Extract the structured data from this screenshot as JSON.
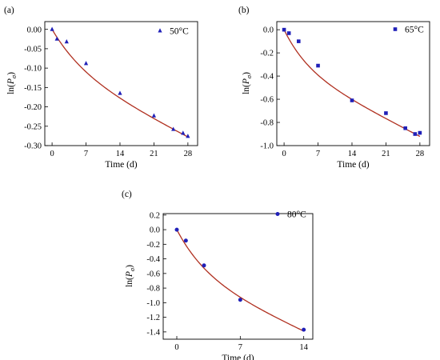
{
  "chart_data": [
    {
      "type": "scatter",
      "panel_label": "(a)",
      "xlabel": "Time (d)",
      "ylabel": {
        "prefix": "ln(",
        "var": "P",
        "sub": "σ",
        "suffix": ")"
      },
      "xlim": [
        -1.5,
        30
      ],
      "ylim": [
        -0.3,
        0.02
      ],
      "xticks": [
        0,
        7,
        14,
        21,
        28
      ],
      "yticks": [
        0.0,
        -0.05,
        -0.1,
        -0.15,
        -0.2,
        -0.25,
        -0.3
      ],
      "ytick_labels": [
        "0.00",
        "-0.05",
        "-0.10",
        "-0.15",
        "-0.20",
        "-0.25",
        "-0.30"
      ],
      "grid": false,
      "legend_position": "top-right",
      "series": [
        {
          "name": "50°C",
          "marker": "triangle",
          "color": "#2020b8",
          "x": [
            0,
            1,
            3,
            7,
            14,
            21,
            25,
            27,
            28
          ],
          "y": [
            0.0,
            -0.025,
            -0.032,
            -0.088,
            -0.165,
            -0.223,
            -0.258,
            -0.268,
            -0.276
          ]
        },
        {
          "name": "fit",
          "type": "line",
          "color": "#b03020",
          "fit": {
            "form": "a*(1-exp(-k*t))+c*t",
            "a": -0.1,
            "k": 0.15,
            "c": -0.0064
          }
        }
      ]
    },
    {
      "type": "scatter",
      "panel_label": "(b)",
      "xlabel": "Time (d)",
      "ylabel": {
        "prefix": "ln(",
        "var": "P",
        "sub": "σ",
        "suffix": ")"
      },
      "xlim": [
        -1.5,
        30
      ],
      "ylim": [
        -1.0,
        0.07
      ],
      "xticks": [
        0,
        7,
        14,
        21,
        28
      ],
      "yticks": [
        0.0,
        -0.2,
        -0.4,
        -0.6,
        -0.8,
        -1.0
      ],
      "ytick_labels": [
        "0.0",
        "-0.2",
        "-0.4",
        "-0.6",
        "-0.8",
        "-1.0"
      ],
      "grid": false,
      "legend_position": "top-right",
      "series": [
        {
          "name": "65°C",
          "marker": "square",
          "color": "#2020b8",
          "x": [
            0,
            1,
            3,
            7,
            14,
            21,
            25,
            27,
            28
          ],
          "y": [
            0.0,
            -0.03,
            -0.1,
            -0.31,
            -0.61,
            -0.72,
            -0.85,
            -0.9,
            -0.89
          ]
        },
        {
          "name": "fit",
          "type": "line",
          "color": "#b03020",
          "fit": {
            "form": "a*(1-exp(-k*t))+c*t",
            "a": -0.32,
            "k": 0.2,
            "c": -0.0215
          }
        }
      ]
    },
    {
      "type": "scatter",
      "panel_label": "(c)",
      "xlabel": "Time (d)",
      "ylabel": {
        "prefix": "ln(",
        "var": "P",
        "sub": "σ",
        "suffix": ")"
      },
      "xlim": [
        -1.5,
        15
      ],
      "ylim": [
        -1.5,
        0.22
      ],
      "xticks": [
        0,
        7,
        14
      ],
      "yticks": [
        0.2,
        0.0,
        -0.2,
        -0.4,
        -0.6,
        -0.8,
        -1.0,
        -1.2,
        -1.4
      ],
      "ytick_labels": [
        "0.2",
        "0.0",
        "-0.2",
        "-0.4",
        "-0.6",
        "-0.8",
        "-1.0",
        "-1.2",
        "-1.4"
      ],
      "grid": false,
      "legend_position": "top-right",
      "series": [
        {
          "name": "80°C",
          "marker": "circle",
          "color": "#2020b8",
          "x": [
            0,
            1,
            3,
            7,
            14
          ],
          "y": [
            0.0,
            -0.15,
            -0.49,
            -0.96,
            -1.37
          ]
        },
        {
          "name": "fit",
          "type": "line",
          "color": "#b03020",
          "fit": {
            "form": "a*(1-exp(-k*t))+c*t",
            "a": -0.6,
            "k": 0.3,
            "c": -0.057
          }
        }
      ]
    }
  ]
}
